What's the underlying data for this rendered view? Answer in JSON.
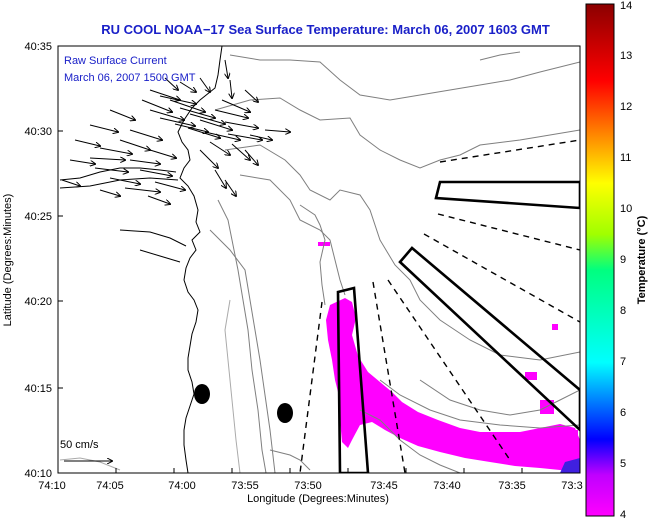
{
  "title": "RU COOL  NOAA−17  Sea Surface Temperature:  March 06, 2007 1603 GMT",
  "legend": {
    "line1": "Raw Surface Current",
    "line2": "March 06, 2007 1500 GMT",
    "scale_label": "50 cm/s"
  },
  "axes": {
    "xlabel": "Longitude (Degrees:Minutes)",
    "ylabel": "Latitude (Degrees:Minutes)",
    "xticks": [
      "74:10",
      "74:05",
      "74:00",
      "73:55",
      "73:50",
      "73:45",
      "73:40",
      "73:35",
      "73:3"
    ],
    "yticks": [
      "40:35",
      "40:30",
      "40:25",
      "40:20",
      "40:15",
      "40:10"
    ]
  },
  "colorbar": {
    "label": "Temperature (°C)",
    "ticks": [
      "14",
      "13",
      "12",
      "11",
      "10",
      "9",
      "8",
      "7",
      "6",
      "5",
      "4"
    ],
    "min": 4,
    "max": 14,
    "colors": [
      "#ff00ff",
      "#0000ff",
      "#00ffff",
      "#00ff00",
      "#ffff00",
      "#ff8000",
      "#ff0000",
      "#8b0000"
    ]
  }
}
